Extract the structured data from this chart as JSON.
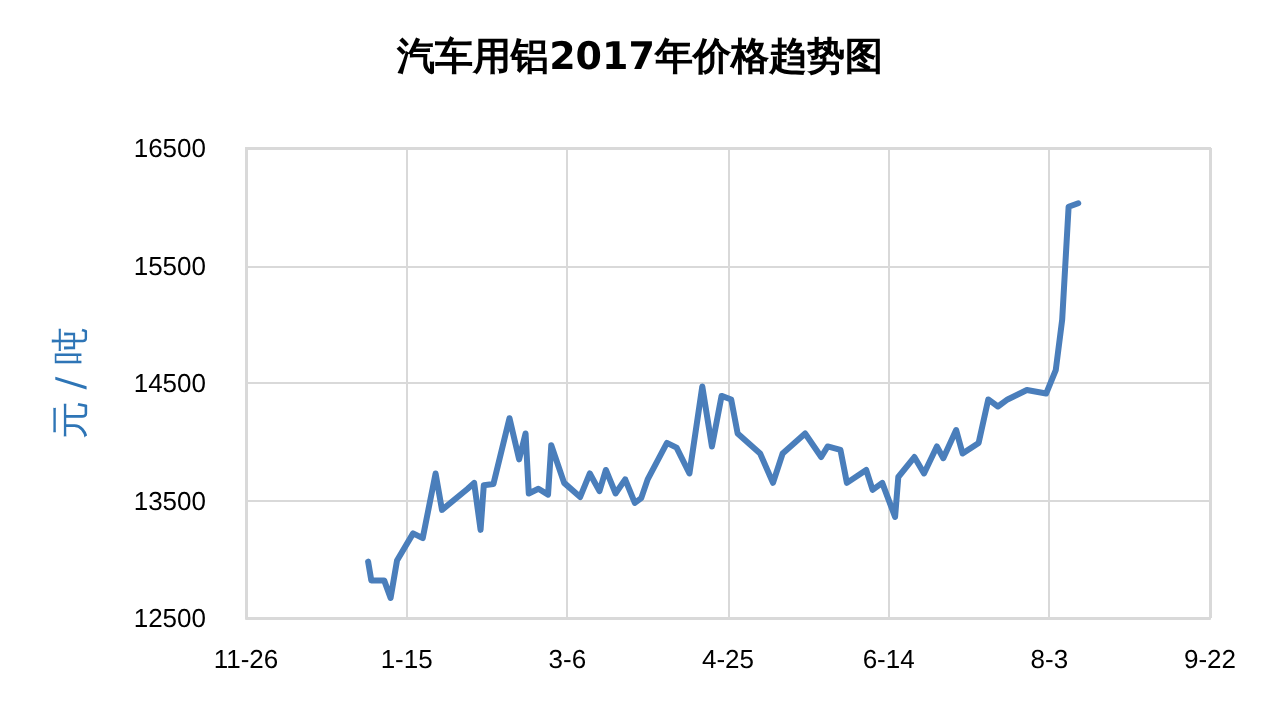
{
  "chart_data": {
    "type": "line",
    "title": "汽车用铝2017年价格趋势图",
    "ylabel": "元 / 吨",
    "x": [
      "2017-01-03",
      "2017-01-04",
      "2017-01-08",
      "2017-01-10",
      "2017-01-12",
      "2017-01-17",
      "2017-01-20",
      "2017-01-24",
      "2017-01-26",
      "2017-02-03",
      "2017-02-05",
      "2017-02-07",
      "2017-02-08",
      "2017-02-11",
      "2017-02-16",
      "2017-02-19",
      "2017-02-21",
      "2017-02-22",
      "2017-02-25",
      "2017-02-28",
      "2017-03-01",
      "2017-03-05",
      "2017-03-10",
      "2017-03-13",
      "2017-03-16",
      "2017-03-18",
      "2017-03-21",
      "2017-03-24",
      "2017-03-27",
      "2017-03-29",
      "2017-03-31",
      "2017-04-06",
      "2017-04-09",
      "2017-04-13",
      "2017-04-17",
      "2017-04-20",
      "2017-04-23",
      "2017-04-26",
      "2017-04-28",
      "2017-05-05",
      "2017-05-09",
      "2017-05-12",
      "2017-05-19",
      "2017-05-24",
      "2017-05-26",
      "2017-05-30",
      "2017-06-01",
      "2017-06-07",
      "2017-06-09",
      "2017-06-12",
      "2017-06-16",
      "2017-06-17",
      "2017-06-22",
      "2017-06-25",
      "2017-06-29",
      "2017-07-01",
      "2017-07-05",
      "2017-07-07",
      "2017-07-12",
      "2017-07-15",
      "2017-07-18",
      "2017-07-21",
      "2017-07-27",
      "2017-08-02",
      "2017-08-05",
      "2017-08-07",
      "2017-08-09",
      "2017-08-12"
    ],
    "series": [
      {
        "color": "#4a7ebb",
        "values": [
          12980,
          12820,
          12820,
          12670,
          12990,
          13220,
          13180,
          13730,
          13420,
          13600,
          13650,
          13250,
          13630,
          13640,
          14200,
          13850,
          14070,
          13560,
          13600,
          13550,
          13970,
          13650,
          13530,
          13730,
          13580,
          13760,
          13560,
          13680,
          13480,
          13520,
          13680,
          13990,
          13950,
          13730,
          14470,
          13960,
          14390,
          14360,
          14070,
          13900,
          13650,
          13900,
          14070,
          13870,
          13960,
          13930,
          13650,
          13760,
          13590,
          13650,
          13360,
          13700,
          13870,
          13730,
          13960,
          13860,
          14100,
          13900,
          13990,
          14360,
          14300,
          14360,
          14440,
          14410,
          14610,
          15040,
          16000,
          16030
        ]
      }
    ],
    "xlim": [
      "2016-11-26",
      "2017-09-22"
    ],
    "xticks": [
      {
        "value": "2016-11-26",
        "label": "11-26"
      },
      {
        "value": "2017-01-15",
        "label": "1-15"
      },
      {
        "value": "2017-03-06",
        "label": "3-6"
      },
      {
        "value": "2017-04-25",
        "label": "4-25"
      },
      {
        "value": "2017-06-14",
        "label": "6-14"
      },
      {
        "value": "2017-08-03",
        "label": "8-3"
      },
      {
        "value": "2017-09-22",
        "label": "9-22"
      }
    ],
    "ylim": [
      12500,
      16500
    ],
    "yticks": [
      12500,
      13500,
      14500,
      15500,
      16500
    ],
    "grid": true,
    "marker": "none",
    "line_style": "solid"
  }
}
